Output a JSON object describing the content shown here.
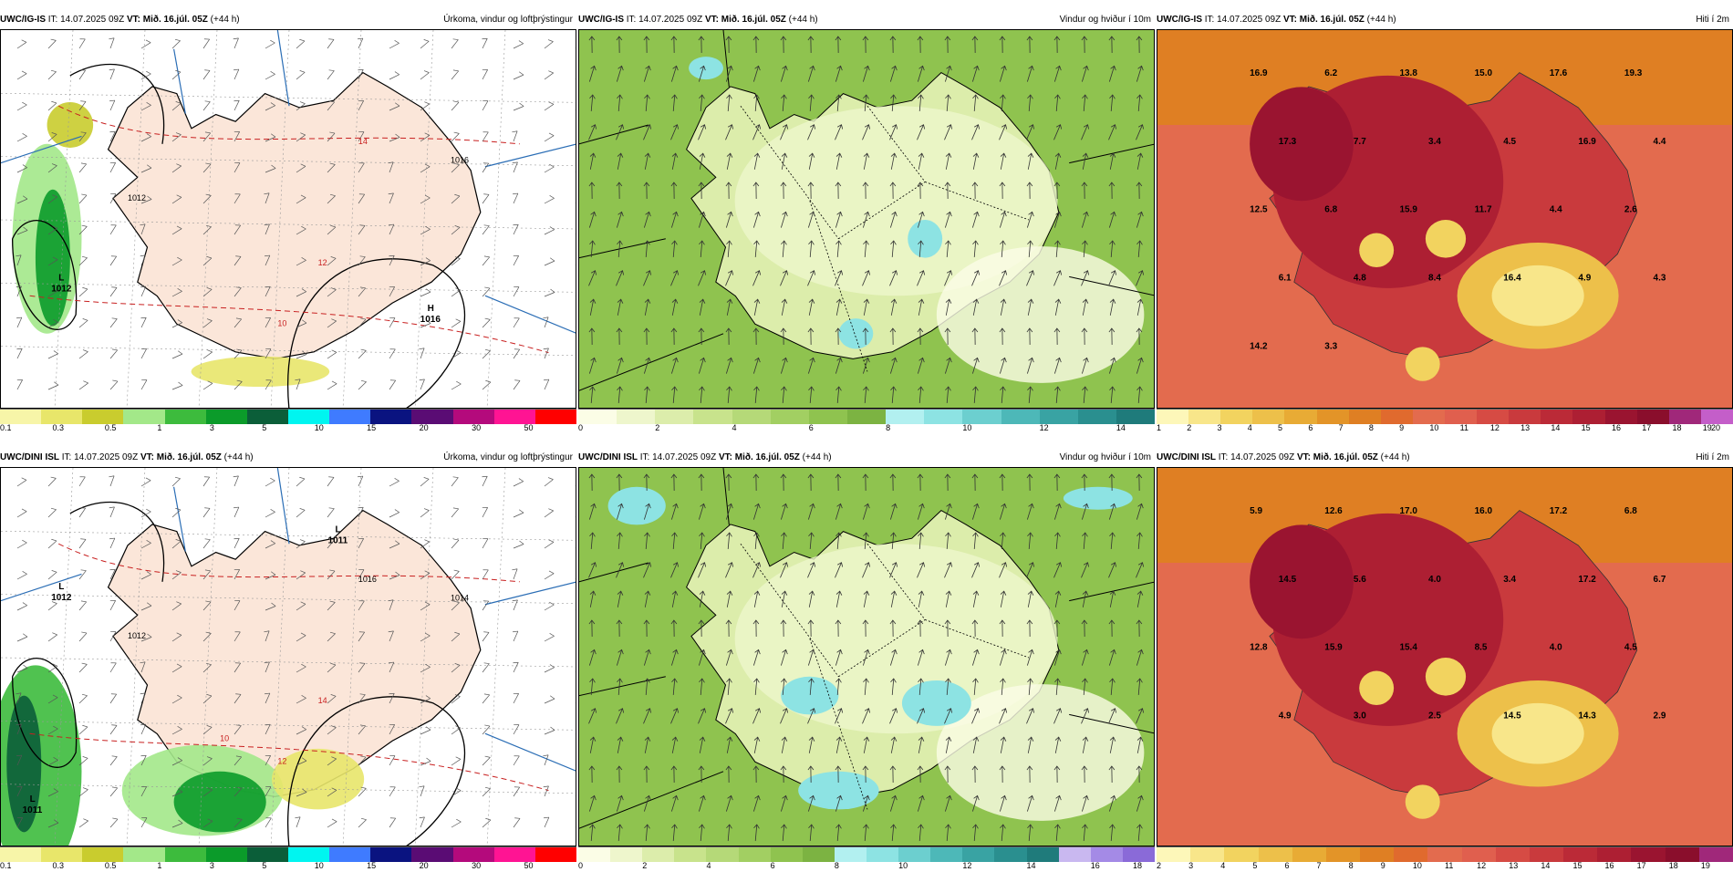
{
  "rows": [
    {
      "prefix": "UWC/IG-IS",
      "panels": [
        {
          "type": "precip",
          "it": "IT: 14.07.2025 09Z",
          "vt_prefix": "VT:",
          "vt": "Mið. 16.júl. 05Z",
          "lead": "(+44 h)",
          "title": "Úrkoma, vindur og loftþrýstingur",
          "colors": [
            "#f7f5a8",
            "#e8e66a",
            "#c9cc2e",
            "#a3e889",
            "#3dbb3d",
            "#0b9b2a",
            "#0b5e39",
            "#00f5f0",
            "#3f7bff",
            "#0a1380",
            "#5a0c74",
            "#b40a7c",
            "#ff1493",
            "#ff0000"
          ],
          "ticks": [
            "0.1",
            "0.3",
            "0.5",
            "1",
            "3",
            "5",
            "10",
            "15",
            "20",
            "30",
            "50"
          ],
          "pressure_labels": [
            {
              "t": "L",
              "v": "1012"
            },
            {
              "t": "H",
              "v": "1016"
            }
          ],
          "contour_labels": [
            "1012",
            "1016",
            "14",
            "12",
            "10"
          ]
        },
        {
          "type": "wind",
          "it": "IT: 14.07.2025 09Z",
          "vt_prefix": "VT:",
          "vt": "Mið. 16.júl. 05Z",
          "lead": "(+44 h)",
          "title": "Vindur og hviður í 10m",
          "colors": [
            "#fbfde6",
            "#eef6cc",
            "#dcedab",
            "#c8e38c",
            "#b5d978",
            "#a2cf62",
            "#8fc34f",
            "#7cb342",
            "#b2f0f0",
            "#8de3e3",
            "#6ccfcf",
            "#4db8b8",
            "#39a3a3",
            "#2a8f8f",
            "#1f7b7b"
          ],
          "ticks": [
            "0",
            "2",
            "4",
            "6",
            "8",
            "10",
            "12",
            "14"
          ]
        },
        {
          "type": "temp",
          "it": "IT: 14.07.2025 09Z",
          "vt_prefix": "VT:",
          "vt": "Mið. 16.júl. 05Z",
          "lead": "(+44 h)",
          "title": "Hiti í 2m",
          "colors": [
            "#fdf7b9",
            "#f8e68a",
            "#f2d35f",
            "#edc04a",
            "#e8ab35",
            "#e39428",
            "#df7f23",
            "#e06a2e",
            "#e36b4e",
            "#e05f4e",
            "#d64b44",
            "#c93a3d",
            "#bb2a37",
            "#ad1f33",
            "#9a1430",
            "#8a0e2c",
            "#a0287a",
            "#c45ec9"
          ],
          "ticks": [
            "1",
            "2",
            "3",
            "4",
            "5",
            "6",
            "7",
            "8",
            "9",
            "10",
            "11",
            "12",
            "13",
            "14",
            "15",
            "16",
            "17",
            "18",
            "19",
            "20"
          ],
          "values": [
            "16.9",
            "6.2",
            "13.8",
            "15.0",
            "17.6",
            "19.3",
            "17.3",
            "7.7",
            "3.4",
            "4.5",
            "16.9",
            "4.4",
            "12.5",
            "6.8",
            "15.9",
            "11.7",
            "4.4",
            "2.6",
            "6.1",
            "4.8",
            "8.4",
            "16.4",
            "4.9",
            "4.3",
            "14.2",
            "3.3"
          ]
        }
      ]
    },
    {
      "prefix": "UWC/DINI ISL",
      "panels": [
        {
          "type": "precip",
          "it": "IT: 14.07.2025 09Z",
          "vt_prefix": "VT:",
          "vt": "Mið. 16.júl. 05Z",
          "lead": "(+44 h)",
          "title": "Úrkoma, vindur og loftþrýstingur",
          "colors": [
            "#f7f5a8",
            "#e8e66a",
            "#c9cc2e",
            "#a3e889",
            "#3dbb3d",
            "#0b9b2a",
            "#0b5e39",
            "#00f5f0",
            "#3f7bff",
            "#0a1380",
            "#5a0c74",
            "#b40a7c",
            "#ff1493",
            "#ff0000"
          ],
          "ticks": [
            "0.1",
            "0.3",
            "0.5",
            "1",
            "3",
            "5",
            "10",
            "15",
            "20",
            "30",
            "50"
          ],
          "pressure_labels": [
            {
              "t": "L",
              "v": "1012"
            },
            {
              "t": "L",
              "v": "1011"
            },
            {
              "t": "L",
              "v": "1011"
            }
          ],
          "contour_labels": [
            "1012",
            "1014",
            "1016",
            "14",
            "12",
            "10"
          ]
        },
        {
          "type": "wind",
          "it": "IT: 14.07.2025 09Z",
          "vt_prefix": "VT:",
          "vt": "Mið. 16.júl. 05Z",
          "lead": "(+44 h)",
          "title": "Vindur og hviður í 10m",
          "colors": [
            "#fbfde6",
            "#eef6cc",
            "#dcedab",
            "#c8e38c",
            "#b5d978",
            "#a2cf62",
            "#8fc34f",
            "#7cb342",
            "#b2f0f0",
            "#8de3e3",
            "#6ccfcf",
            "#4db8b8",
            "#39a3a3",
            "#2a8f8f",
            "#1f7b7b",
            "#c9b8f0",
            "#a48ae6",
            "#8a6ad8"
          ],
          "ticks": [
            "0",
            "2",
            "4",
            "6",
            "8",
            "10",
            "12",
            "14",
            "16",
            "18"
          ]
        },
        {
          "type": "temp",
          "it": "IT: 14.07.2025 09Z",
          "vt_prefix": "VT:",
          "vt": "Mið. 16.júl. 05Z",
          "lead": "(+44 h)",
          "title": "Hiti í 2m",
          "colors": [
            "#fdf7b9",
            "#f8e68a",
            "#f2d35f",
            "#edc04a",
            "#e8ab35",
            "#e39428",
            "#df7f23",
            "#e06a2e",
            "#e36b4e",
            "#e05f4e",
            "#d64b44",
            "#c93a3d",
            "#bb2a37",
            "#ad1f33",
            "#9a1430",
            "#8a0e2c",
            "#a0287a"
          ],
          "ticks": [
            "2",
            "3",
            "4",
            "5",
            "6",
            "7",
            "8",
            "9",
            "10",
            "11",
            "12",
            "13",
            "14",
            "15",
            "16",
            "17",
            "18",
            "19"
          ],
          "values": [
            "5.9",
            "12.6",
            "17.0",
            "16.0",
            "17.2",
            "6.8",
            "14.5",
            "5.6",
            "4.0",
            "3.4",
            "17.2",
            "6.7",
            "12.8",
            "15.9",
            "15.4",
            "8.5",
            "4.0",
            "4.5",
            "4.9",
            "3.0",
            "2.5",
            "14.5",
            "14.3",
            "2.9"
          ]
        }
      ]
    }
  ]
}
